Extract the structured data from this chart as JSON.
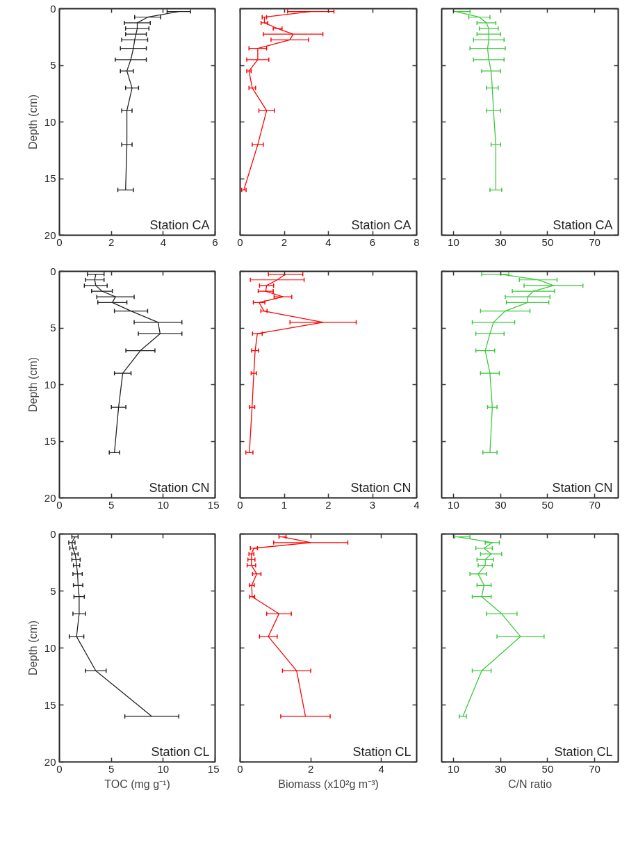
{
  "chart_data": [
    {
      "type": "line",
      "ylabel": "Depth (cm)",
      "xlim": [
        0,
        6
      ],
      "xticks": [
        0,
        2,
        4,
        6
      ],
      "ylim": [
        20,
        0
      ],
      "yticks": [
        0,
        5,
        10,
        15,
        20
      ],
      "annotations": [
        "Station CA"
      ],
      "series": [
        {
          "color": "#222222",
          "values": [
            0.25,
            0.75,
            1.25,
            1.75,
            2.25,
            2.75,
            3.5,
            4.5,
            5.5,
            7,
            9,
            12,
            16
          ],
          "x": [
            4.6,
            3.4,
            3.0,
            3.0,
            2.95,
            2.9,
            2.85,
            2.75,
            2.6,
            2.8,
            2.6,
            2.6,
            2.55
          ],
          "xerrors": [
            0.45,
            0.5,
            0.5,
            0.45,
            0.4,
            0.5,
            0.5,
            0.6,
            0.25,
            0.25,
            0.2,
            0.2,
            0.3
          ]
        }
      ]
    },
    {
      "type": "line",
      "xlim": [
        0,
        8
      ],
      "xticks": [
        0,
        2,
        4,
        6,
        8
      ],
      "ylim": [
        20,
        0
      ],
      "yticks": [
        0,
        5,
        10,
        15,
        20
      ],
      "tick_labels": "x",
      "annotations": [
        "Station CA"
      ],
      "series": [
        {
          "color": "#ff0000",
          "values": [
            0.25,
            0.75,
            1.25,
            1.75,
            2.25,
            2.75,
            3.5,
            4.5,
            5.5,
            7,
            9,
            12,
            16
          ],
          "x": [
            3.2,
            1.1,
            1.1,
            1.7,
            2.4,
            2.25,
            0.8,
            0.8,
            0.4,
            0.55,
            1.2,
            0.8,
            0.17
          ],
          "xerrors": [
            1.05,
            0.1,
            0.15,
            0.2,
            1.35,
            0.85,
            0.4,
            0.5,
            0.1,
            0.15,
            0.35,
            0.25,
            0.1
          ]
        }
      ]
    },
    {
      "type": "line",
      "xlim": [
        5,
        80
      ],
      "xticks": [
        10,
        30,
        50,
        70
      ],
      "ylim": [
        20,
        0
      ],
      "yticks": [
        0,
        5,
        10,
        15,
        20
      ],
      "tick_labels": "x",
      "annotations": [
        "Station CA"
      ],
      "series": [
        {
          "color": "#3cc83c",
          "values": [
            0.25,
            0.75,
            1.25,
            1.75,
            2.25,
            2.75,
            3.5,
            4.5,
            5.5,
            7,
            9,
            12,
            16
          ],
          "x": [
            11,
            21,
            24,
            25,
            25,
            25,
            24.5,
            25,
            26,
            26.5,
            27,
            28,
            28
          ],
          "xerrors": [
            [
              10,
              17
            ],
            4.5,
            4,
            4,
            5,
            6.5,
            7.5,
            6.5,
            4,
            2.5,
            3,
            2,
            2.5
          ]
        }
      ]
    },
    {
      "type": "line",
      "ylabel": "Depth (cm)",
      "xlim": [
        0,
        15
      ],
      "xticks": [
        0,
        5,
        10,
        15
      ],
      "ylim": [
        20,
        0
      ],
      "yticks": [
        0,
        5,
        10,
        15,
        20
      ],
      "annotations": [
        "Station CN"
      ],
      "series": [
        {
          "color": "#222222",
          "values": [
            0.25,
            0.75,
            1.25,
            1.75,
            2.25,
            2.75,
            3.5,
            4.5,
            5.5,
            7,
            9,
            12,
            16
          ],
          "x": [
            3.5,
            3.4,
            3.5,
            4.1,
            5.4,
            5.1,
            6.9,
            9.5,
            9.7,
            7.8,
            6.1,
            5.7,
            5.3
          ],
          "xerrors": [
            0.8,
            0.9,
            1.1,
            1.0,
            1.8,
            1.4,
            1.6,
            2.3,
            2.1,
            1.4,
            0.8,
            0.7,
            0.5
          ]
        }
      ]
    },
    {
      "type": "line",
      "xlim": [
        0,
        4
      ],
      "xticks": [
        0,
        1,
        2,
        3,
        4
      ],
      "ylim": [
        20,
        0
      ],
      "yticks": [
        0,
        5,
        10,
        15,
        20
      ],
      "tick_labels": "x",
      "annotations": [
        "Station CN"
      ],
      "series": [
        {
          "color": "#ff0000",
          "values": [
            0.25,
            0.75,
            1.25,
            1.75,
            2.25,
            2.75,
            3.5,
            4.5,
            5.5,
            7,
            9,
            12,
            16
          ],
          "x": [
            1.03,
            0.84,
            0.6,
            0.58,
            0.97,
            0.43,
            0.54,
            1.88,
            0.39,
            0.34,
            0.31,
            0.27,
            0.21
          ],
          "xerrors": [
            0.39,
            0.61,
            0.16,
            0.17,
            0.2,
            0.13,
            0.07,
            0.75,
            0.11,
            0.08,
            0.06,
            0.06,
            0.08
          ]
        }
      ]
    },
    {
      "type": "line",
      "xlim": [
        5,
        80
      ],
      "xticks": [
        10,
        30,
        50,
        70
      ],
      "ylim": [
        20,
        0
      ],
      "yticks": [
        0,
        5,
        10,
        15,
        20
      ],
      "tick_labels": "x",
      "annotations": [
        "Station CN"
      ],
      "series": [
        {
          "color": "#3cc83c",
          "values": [
            0.25,
            0.75,
            1.25,
            1.75,
            2.25,
            2.75,
            3.5,
            4.5,
            5.5,
            7,
            9,
            12,
            16
          ],
          "x": [
            30,
            46,
            52.5,
            44,
            41.5,
            41.5,
            32,
            27,
            25.5,
            23.5,
            25.5,
            26.5,
            25.5
          ],
          "xerrors": [
            [
              22,
              33.5
            ],
            8,
            12.5,
            9,
            9.5,
            9,
            10.5,
            9,
            6,
            4,
            4,
            2,
            3
          ]
        }
      ]
    },
    {
      "type": "line",
      "xlabel": "TOC (mg g⁻¹)",
      "ylabel": "Depth (cm)",
      "xlim": [
        0,
        15
      ],
      "xticks": [
        0,
        5,
        10,
        15
      ],
      "ylim": [
        20,
        0
      ],
      "yticks": [
        0,
        5,
        10,
        15,
        20
      ],
      "annotations": [
        "Station CL"
      ],
      "series": [
        {
          "color": "#222222",
          "values": [
            0.25,
            0.75,
            1.25,
            1.75,
            2.25,
            2.75,
            3.5,
            4.5,
            5.5,
            7,
            9,
            12,
            16
          ],
          "x": [
            1.5,
            1.2,
            1.3,
            1.5,
            1.6,
            1.65,
            1.75,
            1.8,
            1.9,
            1.9,
            1.65,
            3.5,
            8.9
          ],
          "xerrors": [
            0.3,
            0.3,
            0.3,
            0.3,
            0.4,
            0.3,
            0.45,
            0.45,
            0.5,
            0.6,
            0.7,
            1.0,
            2.6
          ]
        }
      ]
    },
    {
      "type": "line",
      "xlabel": "Biomass (x10²g m⁻³)",
      "xlim": [
        0,
        5
      ],
      "xticks": [
        0,
        2,
        4
      ],
      "ylim": [
        20,
        0
      ],
      "yticks": [
        0,
        5,
        10,
        15,
        20
      ],
      "tick_labels": "x",
      "annotations": [
        "Station CL"
      ],
      "series": [
        {
          "color": "#ff0000",
          "values": [
            0.25,
            0.75,
            1.25,
            1.75,
            2.25,
            2.75,
            3.5,
            4.5,
            5.5,
            7,
            9,
            12,
            16
          ],
          "x": [
            1.2,
            2.0,
            0.39,
            0.32,
            0.32,
            0.32,
            0.47,
            0.33,
            0.34,
            1.1,
            0.8,
            1.6,
            1.85
          ],
          "xerrors": [
            0.1,
            1.05,
            0.1,
            0.07,
            0.1,
            0.12,
            0.12,
            0.07,
            0.07,
            0.35,
            0.25,
            0.4,
            0.7
          ]
        }
      ]
    },
    {
      "type": "line",
      "xlabel": "C/N ratio",
      "xlim": [
        5,
        80
      ],
      "xticks": [
        10,
        30,
        50,
        70
      ],
      "ylim": [
        20,
        0
      ],
      "yticks": [
        0,
        5,
        10,
        15,
        20
      ],
      "tick_labels": "x",
      "annotations": [
        "Station CL"
      ],
      "series": [
        {
          "color": "#3cc83c",
          "values": [
            0.25,
            0.75,
            1.25,
            1.75,
            2.25,
            2.75,
            3.5,
            4.5,
            5.5,
            7,
            9,
            12,
            16
          ],
          "x": [
            12,
            26.5,
            23,
            26,
            23.5,
            23.5,
            20.5,
            23,
            22,
            30.5,
            38.5,
            22,
            14
          ],
          "xerrors": [
            [
              10.5,
              17
            ],
            3,
            3.5,
            4.5,
            3.5,
            3,
            3.5,
            3,
            4,
            6.5,
            10,
            4,
            1.5
          ]
        }
      ]
    }
  ]
}
